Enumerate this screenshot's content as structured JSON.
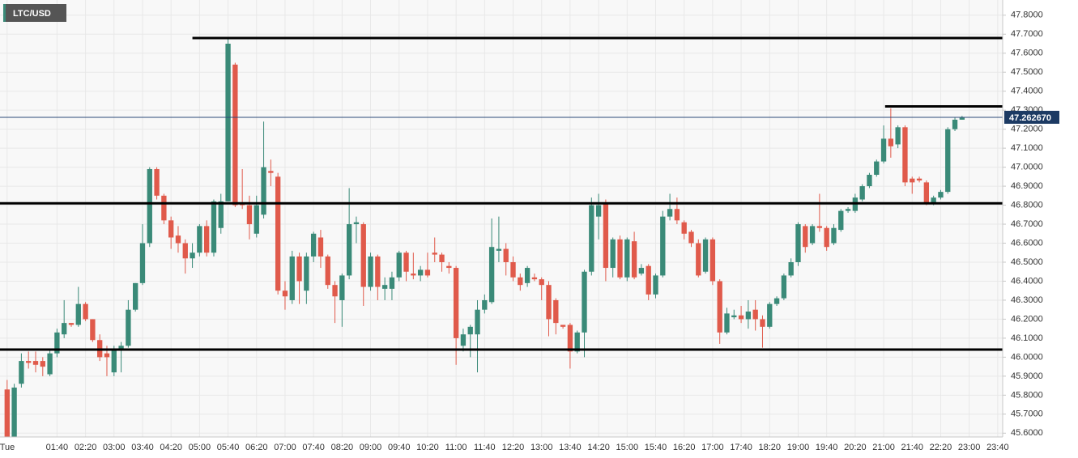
{
  "chart_data": {
    "type": "candlestick",
    "title": "LTC/USD",
    "up_color": "#3a8a78",
    "down_color": "#e05a4b",
    "grid": true,
    "xlim": [
      20,
      1427
    ],
    "ylim": [
      45.58,
      47.88
    ],
    "xticks": [
      {
        "value": 30,
        "label": "Tue"
      },
      {
        "value": 100,
        "label": "01:40"
      },
      {
        "value": 140,
        "label": "02:20"
      },
      {
        "value": 180,
        "label": "03:00"
      },
      {
        "value": 220,
        "label": "03:40"
      },
      {
        "value": 260,
        "label": "04:20"
      },
      {
        "value": 300,
        "label": "05:00"
      },
      {
        "value": 340,
        "label": "05:40"
      },
      {
        "value": 380,
        "label": "06:20"
      },
      {
        "value": 420,
        "label": "07:00"
      },
      {
        "value": 460,
        "label": "07:40"
      },
      {
        "value": 500,
        "label": "08:20"
      },
      {
        "value": 540,
        "label": "09:00"
      },
      {
        "value": 580,
        "label": "09:40"
      },
      {
        "value": 620,
        "label": "10:20"
      },
      {
        "value": 660,
        "label": "11:00"
      },
      {
        "value": 700,
        "label": "11:40"
      },
      {
        "value": 740,
        "label": "12:20"
      },
      {
        "value": 780,
        "label": "13:00"
      },
      {
        "value": 820,
        "label": "13:40"
      },
      {
        "value": 860,
        "label": "14:20"
      },
      {
        "value": 900,
        "label": "15:00"
      },
      {
        "value": 940,
        "label": "15:40"
      },
      {
        "value": 980,
        "label": "16:20"
      },
      {
        "value": 1020,
        "label": "17:00"
      },
      {
        "value": 1060,
        "label": "17:40"
      },
      {
        "value": 1100,
        "label": "18:20"
      },
      {
        "value": 1140,
        "label": "19:00"
      },
      {
        "value": 1180,
        "label": "19:40"
      },
      {
        "value": 1220,
        "label": "20:20"
      },
      {
        "value": 1260,
        "label": "21:00"
      },
      {
        "value": 1300,
        "label": "21:40"
      },
      {
        "value": 1340,
        "label": "22:20"
      },
      {
        "value": 1380,
        "label": "23:00"
      },
      {
        "value": 1420,
        "label": "23:40"
      }
    ],
    "yticks": [
      {
        "value": 45.6,
        "label": "45.6000"
      },
      {
        "value": 45.7,
        "label": "45.7000"
      },
      {
        "value": 45.8,
        "label": "45.8000"
      },
      {
        "value": 45.9,
        "label": "45.9000"
      },
      {
        "value": 46.0,
        "label": "46.0000"
      },
      {
        "value": 46.1,
        "label": "46.1000"
      },
      {
        "value": 46.2,
        "label": "46.2000"
      },
      {
        "value": 46.3,
        "label": "46.3000"
      },
      {
        "value": 46.4,
        "label": "46.4000"
      },
      {
        "value": 46.5,
        "label": "46.5000"
      },
      {
        "value": 46.6,
        "label": "46.6000"
      },
      {
        "value": 46.7,
        "label": "46.7000"
      },
      {
        "value": 46.8,
        "label": "46.8000"
      },
      {
        "value": 46.9,
        "label": "46.9000"
      },
      {
        "value": 47.0,
        "label": "47.0000"
      },
      {
        "value": 47.1,
        "label": "47.1000"
      },
      {
        "value": 47.2,
        "label": "47.2000"
      },
      {
        "value": 47.3,
        "label": "47.3000"
      },
      {
        "value": 47.4,
        "label": "47.4000"
      },
      {
        "value": 47.5,
        "label": "47.5000"
      },
      {
        "value": 47.6,
        "label": "47.6000"
      },
      {
        "value": 47.7,
        "label": "47.7000"
      },
      {
        "value": 47.8,
        "label": "47.8000"
      }
    ],
    "last_price": {
      "value": 47.26267,
      "label": "47.262670"
    },
    "levels": [
      {
        "value": 47.68,
        "from": 290
      },
      {
        "value": 47.32,
        "from": 1262
      },
      {
        "value": 46.81
      },
      {
        "value": 46.04
      }
    ],
    "x": [
      30,
      40,
      50,
      60,
      70,
      80,
      90,
      100,
      110,
      120,
      130,
      140,
      150,
      160,
      170,
      180,
      190,
      200,
      210,
      220,
      230,
      240,
      250,
      260,
      270,
      280,
      290,
      300,
      310,
      320,
      330,
      340,
      350,
      360,
      370,
      380,
      390,
      400,
      410,
      420,
      430,
      440,
      450,
      460,
      470,
      480,
      490,
      500,
      510,
      520,
      530,
      540,
      550,
      560,
      570,
      580,
      590,
      600,
      610,
      620,
      630,
      640,
      650,
      660,
      670,
      680,
      690,
      700,
      710,
      720,
      730,
      740,
      750,
      760,
      770,
      780,
      790,
      800,
      810,
      820,
      830,
      840,
      850,
      860,
      870,
      880,
      890,
      900,
      910,
      920,
      930,
      940,
      950,
      960,
      970,
      980,
      990,
      1000,
      1010,
      1020,
      1030,
      1040,
      1050,
      1060,
      1070,
      1080,
      1090,
      1100,
      1110,
      1120,
      1130,
      1140,
      1150,
      1160,
      1170,
      1180,
      1190,
      1200,
      1210,
      1220,
      1230,
      1240,
      1250,
      1260,
      1270,
      1280,
      1290,
      1300,
      1310,
      1320,
      1330,
      1340,
      1350,
      1360,
      1370
    ],
    "open": [
      45.83,
      45.58,
      45.86,
      45.98,
      45.98,
      45.98,
      45.91,
      46.02,
      46.12,
      46.18,
      46.17,
      46.28,
      46.2,
      46.09,
      46.02,
      45.92,
      46.04,
      46.06,
      46.25,
      46.39,
      46.6,
      46.99,
      46.85,
      46.72,
      46.64,
      46.6,
      46.52,
      46.55,
      46.69,
      46.55,
      46.68,
      46.82,
      47.54,
      46.81,
      46.8,
      46.65,
      46.75,
      46.98,
      46.95,
      46.35,
      46.3,
      46.53,
      46.35,
      46.53,
      46.63,
      46.53,
      46.38,
      46.3,
      46.43,
      46.7,
      46.7,
      46.37,
      46.53,
      46.36,
      46.36,
      46.42,
      46.55,
      46.44,
      46.43,
      46.46,
      46.55,
      46.54,
      46.48,
      46.47,
      46.06,
      46.12,
      46.12,
      46.25,
      46.29,
      46.56,
      46.57,
      46.5,
      46.42,
      46.39,
      46.42,
      46.41,
      46.38,
      46.3,
      46.17,
      46.17,
      46.03,
      46.13,
      46.45,
      46.74,
      46.81,
      46.47,
      46.62,
      46.42,
      46.61,
      46.44,
      46.48,
      46.33,
      46.43,
      46.74,
      46.78,
      46.71,
      46.66,
      46.6,
      46.45,
      46.62,
      46.4,
      46.13,
      46.21,
      46.22,
      46.2,
      46.25,
      46.2,
      46.16,
      46.28,
      46.31,
      46.43,
      46.5,
      46.69,
      46.6,
      46.69,
      46.68,
      46.6,
      46.67,
      46.77,
      46.77,
      46.83,
      46.9,
      46.96,
      47.03,
      47.15,
      47.12,
      47.21,
      46.94,
      46.94,
      46.92,
      46.81,
      46.84,
      46.87,
      47.2,
      47.25
    ],
    "high": [
      45.88,
      45.86,
      46.02,
      46.03,
      46.03,
      46.0,
      46.04,
      46.15,
      46.3,
      46.18,
      46.37,
      46.29,
      46.2,
      46.12,
      46.06,
      46.06,
      46.08,
      46.3,
      46.39,
      46.7,
      47.0,
      47.0,
      46.86,
      46.74,
      46.69,
      46.62,
      46.6,
      46.7,
      46.72,
      46.83,
      46.86,
      47.68,
      47.55,
      46.99,
      46.85,
      46.85,
      47.24,
      47.04,
      46.97,
      46.4,
      46.56,
      46.55,
      46.55,
      46.66,
      46.67,
      46.54,
      46.4,
      46.44,
      46.89,
      46.74,
      46.71,
      46.55,
      46.54,
      46.42,
      46.45,
      46.56,
      46.56,
      46.55,
      46.48,
      46.55,
      46.63,
      46.55,
      46.5,
      46.48,
      46.15,
      46.17,
      46.3,
      46.33,
      46.73,
      46.74,
      46.6,
      46.53,
      46.44,
      46.48,
      46.44,
      46.42,
      46.4,
      46.31,
      46.17,
      46.18,
      46.14,
      46.46,
      46.84,
      46.86,
      46.83,
      46.63,
      46.64,
      46.63,
      46.66,
      46.49,
      46.49,
      46.44,
      46.77,
      46.86,
      46.84,
      46.72,
      46.67,
      46.62,
      46.63,
      46.63,
      46.41,
      46.26,
      46.25,
      46.27,
      46.3,
      46.3,
      46.22,
      46.29,
      46.32,
      46.44,
      46.52,
      46.71,
      46.7,
      46.7,
      46.86,
      46.69,
      46.7,
      46.78,
      46.79,
      46.86,
      46.91,
      46.97,
      47.04,
      47.22,
      47.31,
      47.22,
      47.22,
      46.95,
      46.95,
      46.93,
      46.85,
      46.88,
      47.21,
      47.26,
      47.27
    ],
    "low": [
      45.58,
      45.58,
      45.84,
      45.94,
      45.92,
      45.9,
      45.9,
      46.0,
      46.1,
      46.16,
      46.16,
      46.19,
      46.08,
      45.98,
      45.9,
      45.9,
      45.92,
      46.05,
      46.24,
      46.38,
      46.58,
      46.83,
      46.7,
      46.57,
      46.55,
      46.44,
      46.47,
      46.53,
      46.53,
      46.53,
      46.65,
      46.82,
      46.79,
      46.78,
      46.62,
      46.63,
      46.73,
      46.9,
      46.33,
      46.25,
      46.28,
      46.28,
      46.28,
      46.5,
      46.47,
      46.36,
      46.18,
      46.16,
      46.41,
      46.6,
      46.27,
      46.35,
      46.3,
      46.3,
      46.3,
      46.4,
      46.4,
      46.41,
      46.4,
      46.42,
      46.5,
      46.45,
      46.44,
      45.96,
      46.03,
      46.0,
      45.92,
      46.23,
      46.28,
      46.5,
      46.43,
      46.4,
      46.35,
      46.37,
      46.4,
      46.3,
      46.11,
      46.12,
      46.15,
      45.94,
      46.02,
      46.0,
      46.43,
      46.62,
      46.4,
      46.42,
      46.41,
      46.4,
      46.41,
      46.43,
      46.3,
      46.31,
      46.42,
      46.72,
      46.7,
      46.62,
      46.58,
      46.42,
      46.44,
      46.38,
      46.07,
      46.12,
      46.2,
      46.18,
      46.15,
      46.14,
      46.05,
      46.15,
      46.27,
      46.3,
      46.42,
      46.48,
      46.55,
      46.59,
      46.66,
      46.56,
      46.59,
      46.66,
      46.76,
      46.76,
      46.82,
      46.89,
      46.95,
      47.02,
      47.05,
      47.1,
      46.9,
      46.86,
      46.92,
      46.8,
      46.8,
      46.83,
      46.86,
      47.19,
      47.25
    ],
    "close": [
      45.58,
      45.84,
      45.98,
      45.97,
      45.96,
      45.95,
      46.02,
      46.13,
      46.18,
      46.17,
      46.28,
      46.2,
      46.09,
      46.0,
      46.0,
      46.04,
      46.06,
      46.25,
      46.39,
      46.6,
      46.99,
      46.85,
      46.72,
      46.63,
      46.6,
      46.52,
      46.55,
      46.69,
      46.55,
      46.82,
      46.82,
      47.65,
      46.8,
      46.8,
      46.7,
      46.8,
      47.0,
      46.97,
      46.35,
      46.32,
      46.53,
      46.4,
      46.53,
      46.65,
      46.53,
      46.38,
      46.32,
      46.43,
      46.7,
      46.71,
      46.37,
      46.53,
      46.37,
      46.38,
      46.42,
      46.55,
      46.45,
      46.43,
      46.46,
      46.43,
      46.54,
      46.5,
      46.47,
      46.1,
      46.12,
      46.16,
      46.25,
      46.3,
      46.58,
      46.57,
      46.5,
      46.42,
      46.38,
      46.47,
      46.41,
      46.38,
      46.2,
      46.18,
      46.16,
      46.03,
      46.13,
      46.45,
      46.8,
      46.8,
      46.47,
      46.62,
      46.42,
      46.62,
      46.42,
      46.47,
      46.33,
      46.43,
      46.74,
      46.78,
      46.72,
      46.65,
      46.6,
      46.43,
      46.62,
      46.4,
      46.13,
      46.23,
      46.22,
      46.2,
      46.24,
      46.2,
      46.16,
      46.28,
      46.31,
      46.43,
      46.5,
      46.7,
      46.58,
      46.69,
      46.68,
      46.58,
      46.68,
      46.77,
      46.78,
      46.84,
      46.9,
      46.96,
      47.03,
      47.15,
      47.11,
      47.21,
      46.92,
      46.92,
      46.93,
      46.81,
      46.84,
      46.87,
      47.2,
      47.25,
      47.26
    ]
  }
}
